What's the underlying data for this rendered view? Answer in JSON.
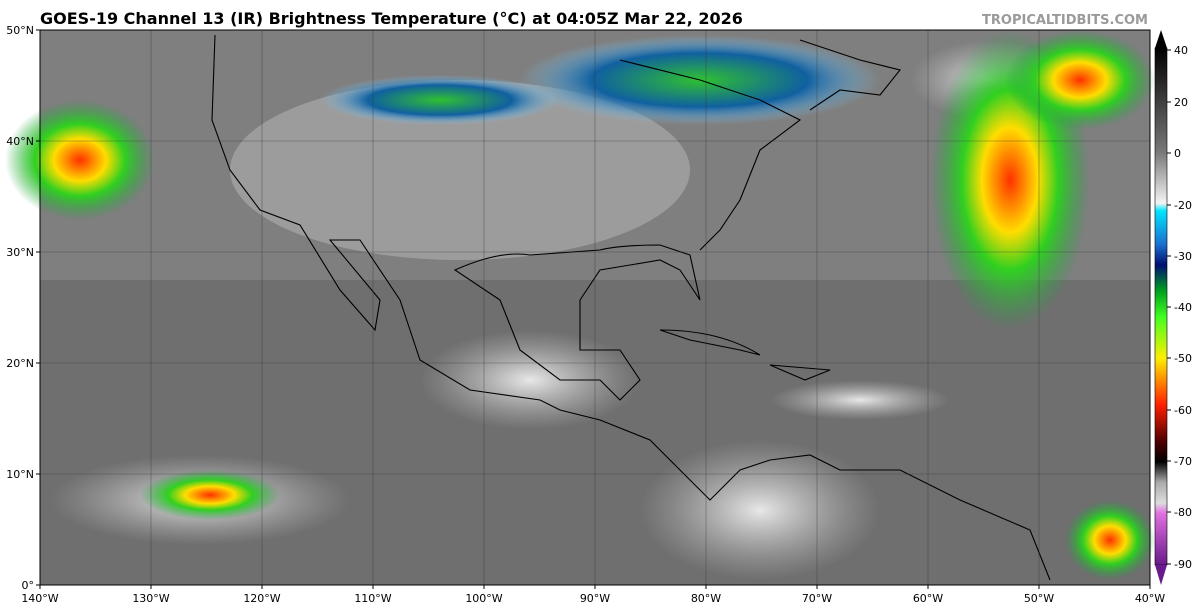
{
  "header": {
    "title": "GOES-19 Channel 13 (IR) Brightness Temperature (°C) at 04:05Z Mar 22, 2026",
    "credit": "TROPICALTIDBITS.COM"
  },
  "map": {
    "lat_labels": [
      "50°N",
      "40°N",
      "30°N",
      "20°N",
      "10°N",
      "0°"
    ],
    "lon_labels": [
      "140°W",
      "130°W",
      "120°W",
      "110°W",
      "100°W",
      "90°W",
      "80°W",
      "70°W",
      "60°W",
      "50°W",
      "40°W"
    ]
  },
  "colorbar": {
    "ticks": [
      "40",
      "20",
      "0",
      "-20",
      "-30",
      "-40",
      "-50",
      "-60",
      "-70",
      "-80",
      "-90"
    ]
  }
}
